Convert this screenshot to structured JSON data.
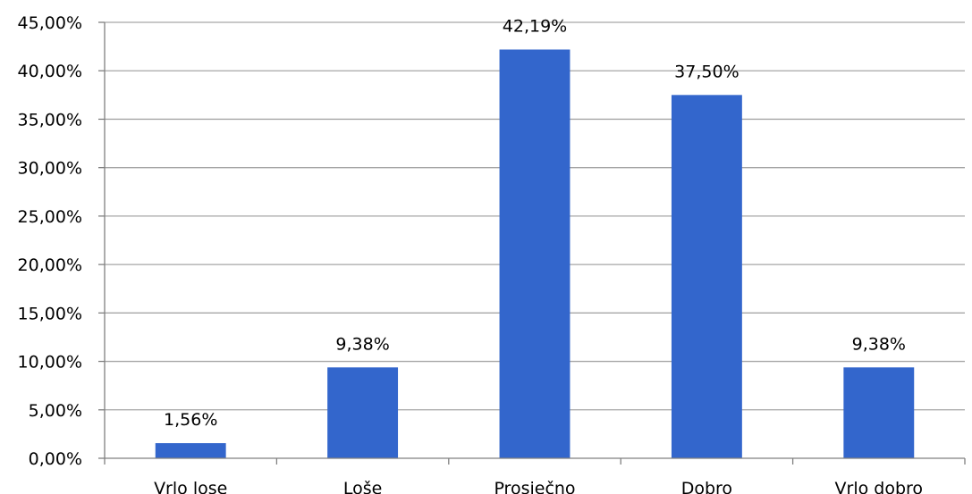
{
  "chart_data": {
    "type": "bar",
    "title": "",
    "xlabel": "",
    "ylabel": "",
    "categories": [
      "Vrlo lose",
      "Loše",
      "Prosječno",
      "Dobro",
      "Vrlo dobro"
    ],
    "values": [
      1.56,
      9.38,
      42.19,
      37.5,
      9.38
    ],
    "data_labels": [
      "1,56%",
      "9,38%",
      "42,19%",
      "37,50%",
      "9,38%"
    ],
    "ylim": [
      0,
      45
    ],
    "yticks": [
      0,
      5,
      10,
      15,
      20,
      25,
      30,
      35,
      40,
      45
    ],
    "ytick_labels": [
      "0,00%",
      "5,00%",
      "10,00%",
      "15,00%",
      "20,00%",
      "25,00%",
      "30,00%",
      "35,00%",
      "40,00%",
      "45,00%"
    ],
    "grid": true,
    "legend": "none",
    "bar_color": "#3366cc"
  }
}
